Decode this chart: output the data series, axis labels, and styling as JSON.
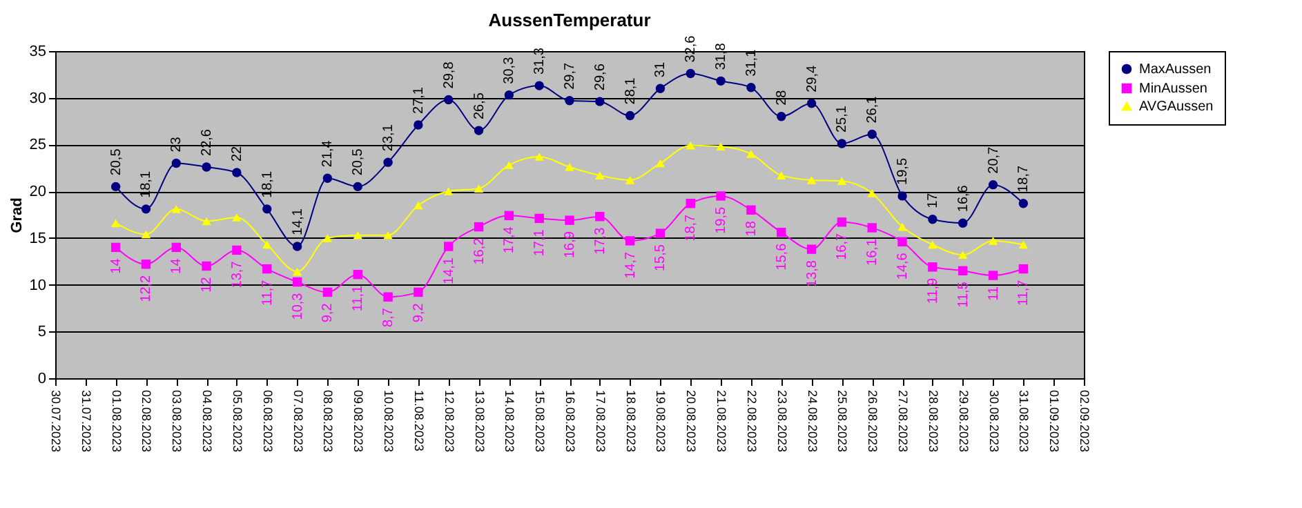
{
  "chart_data": {
    "type": "line",
    "title": "AussenTemperatur",
    "ylabel": "Grad",
    "x": [
      "2023-08-01",
      "2023-08-02",
      "2023-08-03",
      "2023-08-04",
      "2023-08-05",
      "2023-08-06",
      "2023-08-07",
      "2023-08-08",
      "2023-08-09",
      "2023-08-10",
      "2023-08-11",
      "2023-08-12",
      "2023-08-13",
      "2023-08-14",
      "2023-08-15",
      "2023-08-16",
      "2023-08-17",
      "2023-08-18",
      "2023-08-19",
      "2023-08-20",
      "2023-08-21",
      "2023-08-22",
      "2023-08-23",
      "2023-08-24",
      "2023-08-25",
      "2023-08-26",
      "2023-08-27",
      "2023-08-28",
      "2023-08-29",
      "2023-08-30",
      "2023-08-31"
    ],
    "series": [
      {
        "name": "MaxAussen",
        "color": "#000080",
        "marker": "circle",
        "values": [
          20.5,
          18.1,
          23,
          22.6,
          22,
          18.1,
          14.1,
          21.4,
          20.5,
          23.1,
          27.1,
          29.8,
          26.5,
          30.3,
          31.3,
          29.7,
          29.6,
          28.1,
          31,
          32.6,
          31.8,
          31.1,
          28,
          29.4,
          25.1,
          26.1,
          19.5,
          17,
          16.6,
          20.7,
          18.7
        ],
        "value_labels": [
          "20,5",
          "18,1",
          "23",
          "22,6",
          "22",
          "18,1",
          "14,1",
          "21,4",
          "20,5",
          "23,1",
          "27,1",
          "29,8",
          "26,5",
          "30,3",
          "31,3",
          "29,7",
          "29,6",
          "28,1",
          "31",
          "32,6",
          "31,8",
          "31,1",
          "28",
          "29,4",
          "25,1",
          "26,1",
          "19,5",
          "17",
          "16,6",
          "20,7",
          "18,7"
        ]
      },
      {
        "name": "MinAussen",
        "color": "#ff00ff",
        "marker": "square",
        "values": [
          14,
          12.2,
          14,
          12,
          13.7,
          11.7,
          10.3,
          9.2,
          11.1,
          8.7,
          9.2,
          14.1,
          16.2,
          17.4,
          17.1,
          16.9,
          17.3,
          14.7,
          15.5,
          18.7,
          19.5,
          18,
          15.6,
          13.8,
          16.7,
          16.1,
          14.6,
          11.9,
          11.5,
          11,
          11.7
        ],
        "value_labels": [
          "14",
          "12,2",
          "14",
          "12",
          "13,7",
          "11,7",
          "10,3",
          "9,2",
          "11,1",
          "8,7",
          "9,2",
          "14,1",
          "16,2",
          "17,4",
          "17,1",
          "16,9",
          "17,3",
          "14,7",
          "15,5",
          "18,7",
          "19,5",
          "18",
          "15,6",
          "13,8",
          "16,7",
          "16,1",
          "14,6",
          "11,9",
          "11,5",
          "11",
          "11,7"
        ]
      },
      {
        "name": "AVGAussen",
        "color": "#ffff00",
        "marker": "triangle",
        "values": [
          16.6,
          15.4,
          18.1,
          16.8,
          17.2,
          14.3,
          11.4,
          15.0,
          15.3,
          15.3,
          18.5,
          20.0,
          20.3,
          22.8,
          23.7,
          22.6,
          21.7,
          21.2,
          23.0,
          24.9,
          24.8,
          24.0,
          21.7,
          21.2,
          21.1,
          19.8,
          16.2,
          14.3,
          13.2,
          14.7,
          14.3
        ]
      }
    ],
    "xlim": [
      "2023-07-30",
      "2023-09-02"
    ],
    "xticks": [
      {
        "value": "2023-07-30",
        "label": "30.07.2023"
      },
      {
        "value": "2023-07-31",
        "label": "31.07.2023"
      },
      {
        "value": "2023-08-01",
        "label": "01.08.2023"
      },
      {
        "value": "2023-08-02",
        "label": "02.08.2023"
      },
      {
        "value": "2023-08-03",
        "label": "03.08.2023"
      },
      {
        "value": "2023-08-04",
        "label": "04.08.2023"
      },
      {
        "value": "2023-08-05",
        "label": "05.08.2023"
      },
      {
        "value": "2023-08-06",
        "label": "06.08.2023"
      },
      {
        "value": "2023-08-07",
        "label": "07.08.2023"
      },
      {
        "value": "2023-08-08",
        "label": "08.08.2023"
      },
      {
        "value": "2023-08-09",
        "label": "09.08.2023"
      },
      {
        "value": "2023-08-10",
        "label": "10.08.2023"
      },
      {
        "value": "2023-08-11",
        "label": "11.08.2023"
      },
      {
        "value": "2023-08-12",
        "label": "12.08.2023"
      },
      {
        "value": "2023-08-13",
        "label": "13.08.2023"
      },
      {
        "value": "2023-08-14",
        "label": "14.08.2023"
      },
      {
        "value": "2023-08-15",
        "label": "15.08.2023"
      },
      {
        "value": "2023-08-16",
        "label": "16.08.2023"
      },
      {
        "value": "2023-08-17",
        "label": "17.08.2023"
      },
      {
        "value": "2023-08-18",
        "label": "18.08.2023"
      },
      {
        "value": "2023-08-19",
        "label": "19.08.2023"
      },
      {
        "value": "2023-08-20",
        "label": "20.08.2023"
      },
      {
        "value": "2023-08-21",
        "label": "21.08.2023"
      },
      {
        "value": "2023-08-22",
        "label": "22.08.2023"
      },
      {
        "value": "2023-08-23",
        "label": "23.08.2023"
      },
      {
        "value": "2023-08-24",
        "label": "24.08.2023"
      },
      {
        "value": "2023-08-25",
        "label": "25.08.2023"
      },
      {
        "value": "2023-08-26",
        "label": "26.08.2023"
      },
      {
        "value": "2023-08-27",
        "label": "27.08.2023"
      },
      {
        "value": "2023-08-28",
        "label": "28.08.2023"
      },
      {
        "value": "2023-08-29",
        "label": "29.08.2023"
      },
      {
        "value": "2023-08-30",
        "label": "30.08.2023"
      },
      {
        "value": "2023-08-31",
        "label": "31.08.2023"
      },
      {
        "value": "2023-09-01",
        "label": "01.09.2023"
      },
      {
        "value": "2023-09-02",
        "label": "02.09.2023"
      }
    ],
    "ylim": [
      0,
      35
    ],
    "yticks": [
      0,
      5,
      10,
      15,
      20,
      25,
      30,
      35
    ],
    "grid": "y",
    "legend": "right",
    "line_style": "solid"
  }
}
